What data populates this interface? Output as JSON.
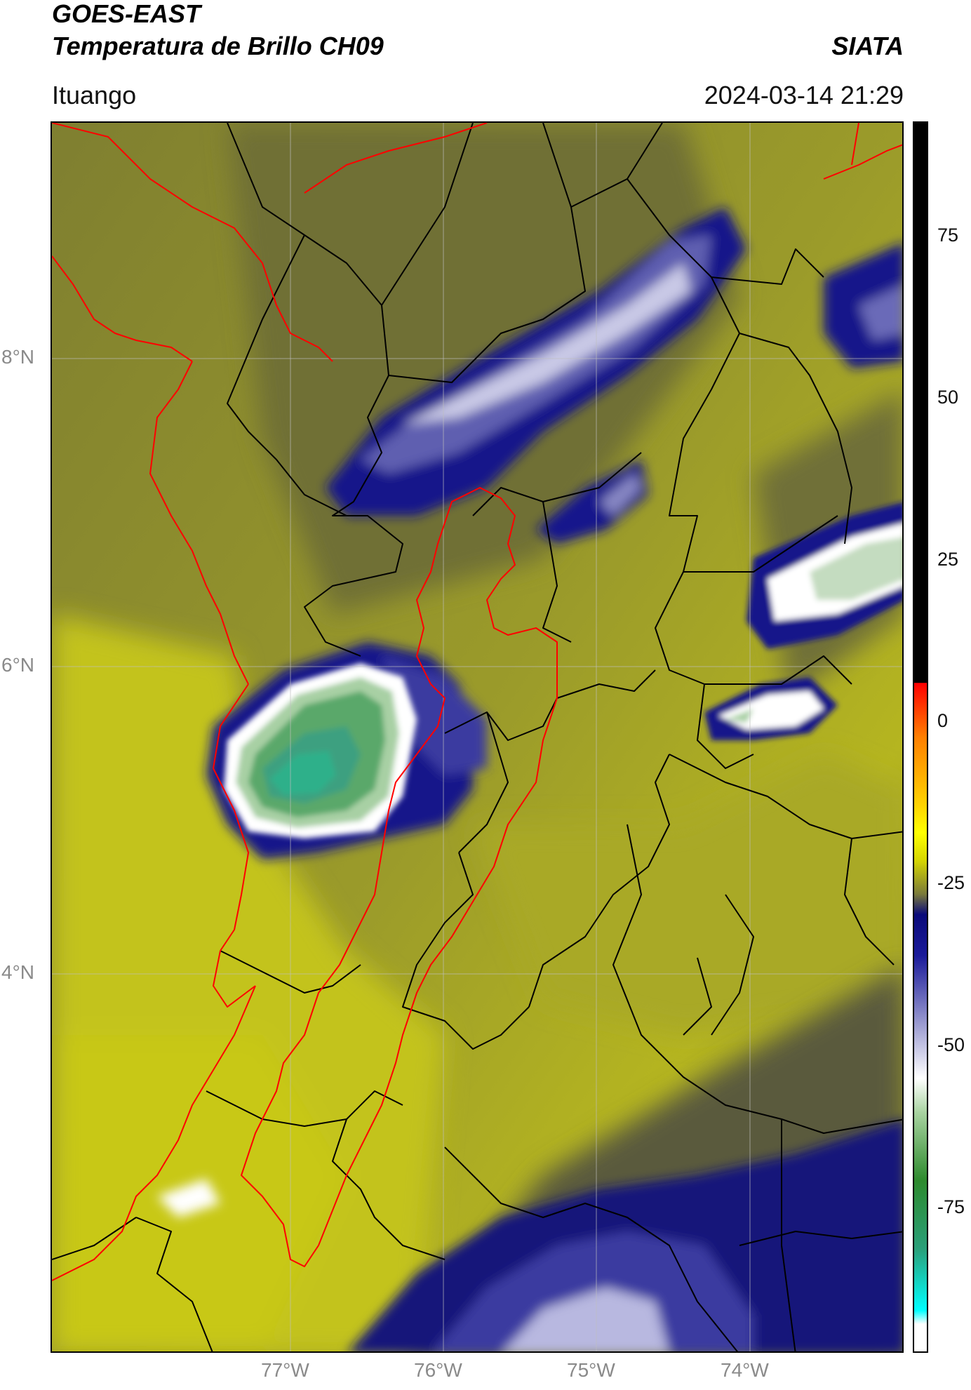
{
  "header": {
    "title_line1": "GOES-EAST",
    "title_line2": "Temperatura de Brillo CH09",
    "agency": "SIATA",
    "location": "Ituango",
    "datetime": "2024-03-14 21:29"
  },
  "map": {
    "lat_labels": [
      "8°N",
      "6°N",
      "4°N"
    ],
    "lon_labels": [
      "77°W",
      "76°W",
      "75°W",
      "74°W"
    ],
    "boundary_colors": {
      "region": "#ff0000",
      "departments": "#000000"
    },
    "background_color": "#8f8f2e"
  },
  "colorbar": {
    "ticks": [
      "75",
      "50",
      "25",
      "0",
      "-25",
      "-50",
      "-75"
    ],
    "range": [
      -90,
      90
    ],
    "stops": [
      {
        "v": 90,
        "c": "#000000"
      },
      {
        "v": 8,
        "c": "#000000"
      },
      {
        "v": 7.9,
        "c": "#ff0000"
      },
      {
        "v": 0,
        "c": "#ff7f00"
      },
      {
        "v": -10,
        "c": "#ffd400"
      },
      {
        "v": -14,
        "c": "#ffff00"
      },
      {
        "v": -18,
        "c": "#d7d700"
      },
      {
        "v": -23,
        "c": "#7a7a3a"
      },
      {
        "v": -26,
        "c": "#0a0a7a"
      },
      {
        "v": -32,
        "c": "#1a1a9a"
      },
      {
        "v": -42,
        "c": "#9a9ad0"
      },
      {
        "v": -50,
        "c": "#ffffff"
      },
      {
        "v": -55,
        "c": "#a8d3a0"
      },
      {
        "v": -65,
        "c": "#2d8a2d"
      },
      {
        "v": -75,
        "c": "#2aa07a"
      },
      {
        "v": -84,
        "c": "#00ffff"
      },
      {
        "v": -86,
        "c": "#ffffff"
      },
      {
        "v": -90,
        "c": "#ffffff"
      }
    ]
  }
}
